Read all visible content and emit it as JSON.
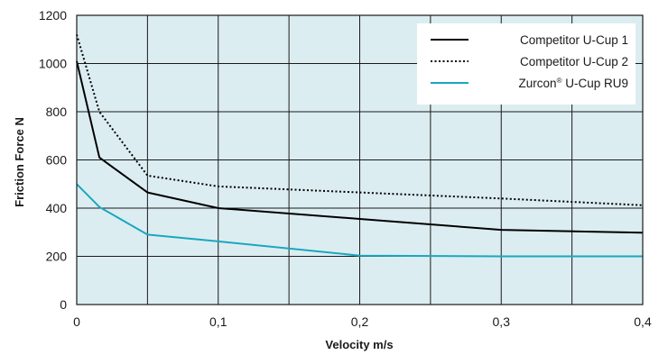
{
  "chart_data": {
    "type": "line",
    "xlabel": "Velocity m/s",
    "ylabel": "Friction Force N",
    "xlim": [
      0,
      0.4
    ],
    "ylim": [
      0,
      1200
    ],
    "x_ticks": [
      0,
      0.05,
      0.1,
      0.15,
      0.2,
      0.25,
      0.3,
      0.35,
      0.4
    ],
    "x_tick_labels": [
      "0",
      "",
      "0,1",
      "",
      "0,2",
      "",
      "0,3",
      "",
      "0,4"
    ],
    "y_ticks": [
      0,
      200,
      400,
      600,
      800,
      1000,
      1200
    ],
    "y_tick_labels": [
      "0",
      "200",
      "400",
      "600",
      "800",
      "1000",
      "1200"
    ],
    "grid": true,
    "plot_background": "#dcedf1",
    "grid_color": "#1a1a1a",
    "legend_position": "top-right",
    "series": [
      {
        "name": "Competitor U-Cup 1",
        "style": "solid",
        "color": "#000000",
        "x": [
          0,
          0.016,
          0.05,
          0.1,
          0.2,
          0.3,
          0.4
        ],
        "y": [
          1010,
          610,
          465,
          400,
          355,
          310,
          298
        ]
      },
      {
        "name": "Competitor U-Cup 2",
        "style": "dotted",
        "color": "#000000",
        "x": [
          0,
          0.016,
          0.05,
          0.1,
          0.2,
          0.3,
          0.4
        ],
        "y": [
          1120,
          800,
          535,
          490,
          465,
          440,
          412
        ]
      },
      {
        "name": "Zurcon® U-Cup RU9",
        "name_main": "Zurcon",
        "name_sup": "®",
        "name_rest": " U-Cup RU9",
        "style": "solid",
        "color": "#1aa7bf",
        "x": [
          0,
          0.016,
          0.05,
          0.1,
          0.2,
          0.3,
          0.4
        ],
        "y": [
          500,
          405,
          290,
          262,
          203,
          200,
          200
        ]
      }
    ]
  }
}
